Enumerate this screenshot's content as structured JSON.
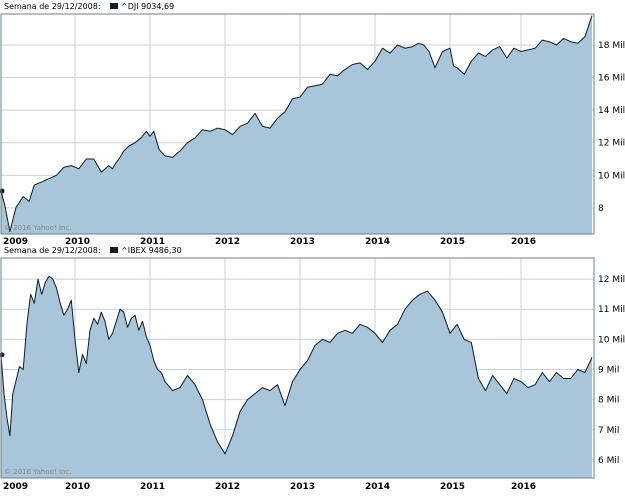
{
  "colors": {
    "fill": "#a8c5da",
    "line": "#0d1b2a",
    "grid": "#c8d3dc",
    "frame": "#6b7f8e",
    "text": "#000000",
    "copyright": "#8a8a8a"
  },
  "chart_data": [
    {
      "type": "area",
      "header": "Semana de 29/12/2008:",
      "series_label": "^DJI 9034,69",
      "copyright": "© 2016 Yahoo! Inc.",
      "x_ticks": [
        "2009",
        "2010",
        "2011",
        "2012",
        "2013",
        "2014",
        "2015",
        "2016"
      ],
      "y_ticks": [
        "8",
        "10 Mil",
        "12 Mil",
        "14 Mil",
        "16 Mil",
        "18 Mil"
      ],
      "y_tick_values": [
        8000,
        10000,
        12000,
        14000,
        16000,
        18000
      ],
      "ylim": [
        6400,
        19900
      ],
      "x": [
        0,
        0.05,
        0.08,
        0.12,
        0.2,
        0.3,
        0.38,
        0.45,
        0.55,
        0.65,
        0.75,
        0.85,
        0.95,
        1.05,
        1.15,
        1.25,
        1.35,
        1.45,
        1.5,
        1.55,
        1.6,
        1.65,
        1.72,
        1.8,
        1.88,
        1.95,
        2.0,
        2.05,
        2.12,
        2.2,
        2.3,
        2.4,
        2.5,
        2.6,
        2.7,
        2.8,
        2.9,
        3.0,
        3.1,
        3.2,
        3.3,
        3.4,
        3.5,
        3.6,
        3.7,
        3.8,
        3.9,
        4.0,
        4.1,
        4.2,
        4.3,
        4.4,
        4.5,
        4.6,
        4.7,
        4.8,
        4.9,
        5.0,
        5.1,
        5.2,
        5.3,
        5.4,
        5.5,
        5.58,
        5.65,
        5.72,
        5.8,
        5.9,
        6.0,
        6.05,
        6.1,
        6.2,
        6.3,
        6.4,
        6.5,
        6.6,
        6.7,
        6.8,
        6.9,
        7.0,
        7.1,
        7.2,
        7.3,
        7.4,
        7.5,
        7.6,
        7.7,
        7.8,
        7.9,
        8.0
      ],
      "values": [
        9035,
        8200,
        7500,
        6550,
        8000,
        8700,
        8400,
        9400,
        9600,
        9800,
        10000,
        10500,
        10600,
        10400,
        11000,
        11000,
        10200,
        10600,
        10400,
        10800,
        11100,
        11500,
        11800,
        12000,
        12300,
        12700,
        12400,
        12700,
        11600,
        11200,
        11100,
        11500,
        12000,
        12300,
        12800,
        12700,
        12900,
        12800,
        12500,
        13000,
        13200,
        13800,
        13000,
        12900,
        13500,
        13900,
        14700,
        14800,
        15400,
        15500,
        15600,
        16200,
        16100,
        16500,
        16800,
        16900,
        16500,
        17000,
        17800,
        17500,
        18000,
        17800,
        17900,
        18100,
        18000,
        17600,
        16600,
        17600,
        17800,
        16700,
        16600,
        16200,
        17000,
        17500,
        17300,
        17700,
        17900,
        17200,
        17800,
        17600,
        17700,
        17800,
        18300,
        18200,
        18000,
        18400,
        18200,
        18100,
        18500,
        19800
      ]
    },
    {
      "type": "area",
      "header": "Semana de 29/12/2008:",
      "series_label": "^IBEX 9486,30",
      "copyright": "© 2016 Yahoo! Inc.",
      "x_ticks": [
        "2009",
        "2010",
        "2011",
        "2012",
        "2013",
        "2014",
        "2015",
        "2016"
      ],
      "y_ticks": [
        "6 Mil",
        "7 Mil",
        "8 Mil",
        "9 Mil",
        "10 Mil",
        "11 Mil",
        "12 Mil"
      ],
      "y_tick_values": [
        6000,
        7000,
        8000,
        9000,
        10000,
        11000,
        12000
      ],
      "ylim": [
        5400,
        12700
      ],
      "x": [
        0,
        0.04,
        0.08,
        0.12,
        0.16,
        0.2,
        0.25,
        0.3,
        0.35,
        0.4,
        0.45,
        0.5,
        0.55,
        0.6,
        0.65,
        0.7,
        0.75,
        0.8,
        0.85,
        0.9,
        0.95,
        1.0,
        1.05,
        1.1,
        1.15,
        1.2,
        1.25,
        1.3,
        1.35,
        1.4,
        1.45,
        1.5,
        1.55,
        1.6,
        1.65,
        1.7,
        1.75,
        1.8,
        1.85,
        1.9,
        1.95,
        2.0,
        2.05,
        2.1,
        2.15,
        2.2,
        2.3,
        2.4,
        2.5,
        2.6,
        2.7,
        2.8,
        2.9,
        3.0,
        3.1,
        3.2,
        3.3,
        3.4,
        3.5,
        3.6,
        3.7,
        3.8,
        3.9,
        4.0,
        4.1,
        4.2,
        4.3,
        4.4,
        4.5,
        4.6,
        4.7,
        4.8,
        4.9,
        5.0,
        5.1,
        5.2,
        5.3,
        5.4,
        5.5,
        5.6,
        5.7,
        5.8,
        5.9,
        6.0,
        6.1,
        6.2,
        6.3,
        6.4,
        6.5,
        6.6,
        6.7,
        6.8,
        6.9,
        7.0,
        7.1,
        7.2,
        7.3,
        7.4,
        7.5,
        7.6,
        7.7,
        7.8,
        7.9,
        8.0
      ],
      "values": [
        9486,
        8200,
        7400,
        6800,
        8200,
        8600,
        9100,
        9000,
        10500,
        11500,
        11200,
        12000,
        11500,
        11900,
        12100,
        12000,
        11700,
        11200,
        10800,
        11000,
        11300,
        10000,
        8900,
        9500,
        9200,
        10300,
        10700,
        10500,
        10900,
        10600,
        10000,
        10200,
        10600,
        11000,
        10900,
        10400,
        10700,
        10800,
        10300,
        10600,
        10100,
        9800,
        9300,
        9000,
        8900,
        8600,
        8300,
        8400,
        8800,
        8500,
        8000,
        7200,
        6600,
        6200,
        6800,
        7600,
        8000,
        8200,
        8400,
        8300,
        8500,
        7800,
        8600,
        9000,
        9300,
        9800,
        10000,
        9900,
        10200,
        10300,
        10200,
        10500,
        10400,
        10200,
        9900,
        10300,
        10500,
        11000,
        11300,
        11500,
        11600,
        11300,
        10900,
        10200,
        10500,
        10000,
        9900,
        8700,
        8300,
        8800,
        8500,
        8200,
        8700,
        8600,
        8400,
        8500,
        8900,
        8600,
        8900,
        8700,
        8700,
        9000,
        8900,
        9400
      ]
    }
  ]
}
